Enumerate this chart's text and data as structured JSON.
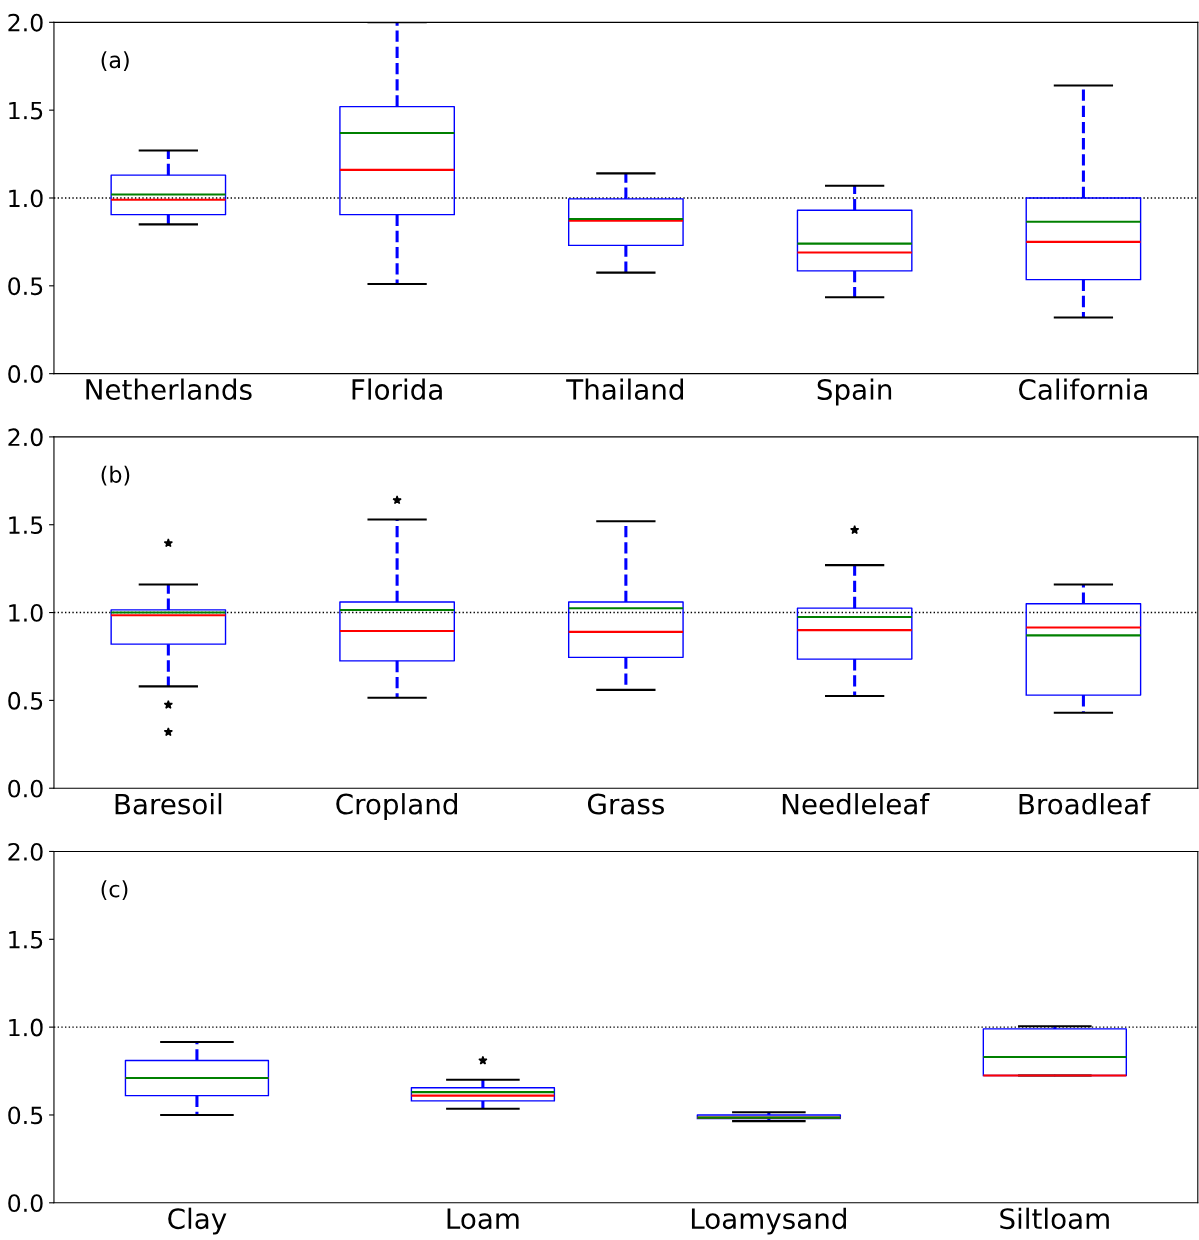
{
  "chart_data": [
    {
      "type": "box",
      "categories": [
        "Netherlands",
        "Florida",
        "Thailand",
        "Spain",
        "California"
      ],
      "ylim": [
        0,
        2
      ],
      "yticks": [
        {
          "value": 0,
          "label": "0.0"
        },
        {
          "value": 0.5,
          "label": "0.5"
        },
        {
          "value": 1,
          "label": "1.0"
        },
        {
          "value": 1.5,
          "label": "1.5"
        },
        {
          "value": 2,
          "label": "2.0"
        }
      ],
      "grid": false,
      "annotations": [
        "(a)"
      ],
      "ref_lines": [
        {
          "axis": "y",
          "value": 1,
          "color": "#000000",
          "line_style": "dotted"
        }
      ],
      "series": [
        {
          "color": "#0000ff",
          "boxes": [
            {
              "low": 0.85,
              "q1": 0.905,
              "median": 0.99,
              "q3": 1.13,
              "high": 1.27,
              "mean": 1.02
            },
            {
              "low": 0.51,
              "q1": 0.905,
              "median": 1.16,
              "q3": 1.52,
              "high": 2.0,
              "mean": 1.37
            },
            {
              "low": 0.575,
              "q1": 0.73,
              "median": 0.87,
              "q3": 0.995,
              "high": 1.14,
              "mean": 0.88
            },
            {
              "low": 0.435,
              "q1": 0.585,
              "median": 0.69,
              "q3": 0.93,
              "high": 1.07,
              "mean": 0.74
            },
            {
              "low": 0.32,
              "q1": 0.535,
              "median": 0.75,
              "q3": 1.0,
              "high": 1.64,
              "mean": 0.865
            }
          ]
        }
      ]
    },
    {
      "type": "box",
      "categories": [
        "Baresoil",
        "Cropland",
        "Grass",
        "Needleleaf",
        "Broadleaf"
      ],
      "ylim": [
        0,
        2
      ],
      "yticks": [
        {
          "value": 0,
          "label": "0.0"
        },
        {
          "value": 0.5,
          "label": "0.5"
        },
        {
          "value": 1,
          "label": "1.0"
        },
        {
          "value": 1.5,
          "label": "1.5"
        },
        {
          "value": 2,
          "label": "2.0"
        }
      ],
      "grid": false,
      "annotations": [
        "(b)"
      ],
      "ref_lines": [
        {
          "axis": "y",
          "value": 1,
          "color": "#000000",
          "line_style": "dotted"
        }
      ],
      "series": [
        {
          "color": "#0000ff",
          "boxes": [
            {
              "low": 0.58,
              "q1": 0.82,
              "median": 0.985,
              "q3": 1.015,
              "high": 1.16,
              "mean": 1.0,
              "outliers": [
                1.395,
                0.475,
                0.32
              ]
            },
            {
              "low": 0.515,
              "q1": 0.725,
              "median": 0.895,
              "q3": 1.06,
              "high": 1.53,
              "mean": 1.015,
              "outliers": [
                1.64
              ]
            },
            {
              "low": 0.56,
              "q1": 0.745,
              "median": 0.89,
              "q3": 1.06,
              "high": 1.52,
              "mean": 1.025
            },
            {
              "low": 0.525,
              "q1": 0.735,
              "median": 0.9,
              "q3": 1.025,
              "high": 1.27,
              "mean": 0.975,
              "outliers": [
                1.47
              ]
            },
            {
              "low": 0.43,
              "q1": 0.53,
              "median": 0.915,
              "q3": 1.05,
              "high": 1.16,
              "mean": 0.87
            }
          ]
        }
      ]
    },
    {
      "type": "box",
      "categories": [
        "Clay",
        "Loam",
        "Loamysand",
        "Siltloam"
      ],
      "ylim": [
        0,
        2
      ],
      "yticks": [
        {
          "value": 0,
          "label": "0.0"
        },
        {
          "value": 0.5,
          "label": "0.5"
        },
        {
          "value": 1,
          "label": "1.0"
        },
        {
          "value": 1.5,
          "label": "1.5"
        },
        {
          "value": 2,
          "label": "2.0"
        }
      ],
      "grid": false,
      "annotations": [
        "(c)"
      ],
      "ref_lines": [
        {
          "axis": "y",
          "value": 1,
          "color": "#000000",
          "line_style": "dotted"
        }
      ],
      "series": [
        {
          "color": "#0000ff",
          "boxes": [
            {
              "low": 0.5,
              "q1": 0.61,
              "median": 0.71,
              "q3": 0.81,
              "high": 0.915,
              "mean": 0.71
            },
            {
              "low": 0.535,
              "q1": 0.58,
              "median": 0.61,
              "q3": 0.655,
              "high": 0.7,
              "mean": 0.63,
              "outliers": [
                0.81
              ]
            },
            {
              "low": 0.465,
              "q1": 0.48,
              "median": 0.485,
              "q3": 0.5,
              "high": 0.515,
              "mean": 0.485
            },
            {
              "low": 0.725,
              "q1": 0.725,
              "median": 0.725,
              "q3": 0.99,
              "high": 1.005,
              "mean": 0.83
            }
          ]
        }
      ]
    }
  ]
}
